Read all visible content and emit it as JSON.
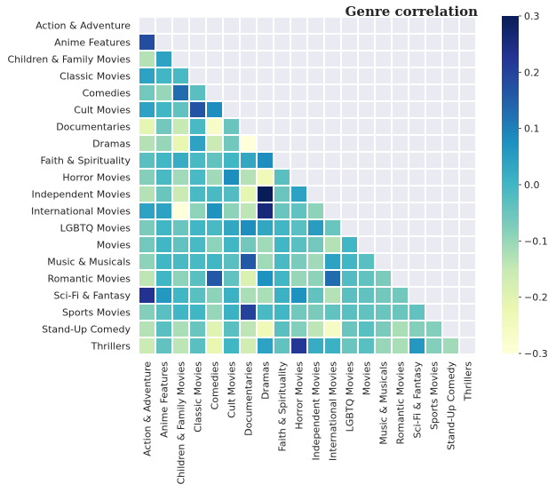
{
  "chart_data": {
    "type": "heatmap",
    "title": "Genre correlation",
    "labels": [
      "Action & Adventure",
      "Anime Features",
      "Children & Family Movies",
      "Classic Movies",
      "Comedies",
      "Cult Movies",
      "Documentaries",
      "Dramas",
      "Faith & Spirituality",
      "Horror Movies",
      "Independent Movies",
      "International Movies",
      "LGBTQ Movies",
      "Movies",
      "Music & Musicals",
      "Romantic Movies",
      "Sci-Fi & Fantasy",
      "Sports Movies",
      "Stand-Up Comedy",
      "Thrillers"
    ],
    "mask": "upper triangle including diagonal",
    "colormap": "YlGnBu",
    "vmin": -0.3,
    "vmax": 0.3,
    "colorbar_ticks": [
      "0.3",
      "0.2",
      "0.1",
      "0.0",
      "−0.1",
      "−0.2",
      "−0.3"
    ],
    "lower_triangle": [
      [],
      [
        0.18
      ],
      [
        -0.13,
        0.04
      ],
      [
        0.04,
        0.0,
        -0.01
      ],
      [
        -0.06,
        -0.1,
        0.13,
        -0.03
      ],
      [
        0.04,
        0.0,
        -0.04,
        0.17,
        0.08
      ],
      [
        -0.21,
        -0.06,
        -0.15,
        -0.01,
        -0.27,
        -0.05
      ],
      [
        -0.13,
        -0.1,
        -0.22,
        0.04,
        -0.16,
        -0.06,
        -0.3
      ],
      [
        -0.03,
        0.0,
        0.02,
        -0.01,
        -0.04,
        0.0,
        0.03,
        0.08
      ],
      [
        -0.08,
        -0.01,
        -0.11,
        -0.01,
        -0.11,
        0.08,
        -0.13,
        -0.24,
        -0.03
      ],
      [
        -0.13,
        -0.05,
        -0.16,
        -0.01,
        -0.01,
        -0.02,
        -0.21,
        0.3,
        -0.05,
        0.04
      ],
      [
        0.04,
        0.04,
        -0.3,
        -0.09,
        0.07,
        -0.09,
        -0.14,
        0.26,
        -0.05,
        -0.04,
        -0.09
      ],
      [
        -0.07,
        0.0,
        -0.05,
        0.0,
        -0.01,
        0.03,
        0.08,
        0.03,
        0.0,
        -0.03,
        0.05,
        -0.05
      ],
      [
        -0.06,
        0.0,
        -0.04,
        -0.01,
        -0.09,
        0.0,
        -0.06,
        -0.11,
        0.0,
        -0.03,
        -0.06,
        -0.13,
        0.0
      ],
      [
        -0.09,
        0.0,
        -0.01,
        -0.01,
        0.0,
        -0.03,
        0.16,
        -0.11,
        -0.01,
        -0.07,
        -0.11,
        0.04,
        0.0,
        -0.03
      ],
      [
        -0.14,
        0.0,
        -0.09,
        -0.03,
        0.16,
        -0.04,
        -0.19,
        0.07,
        0.0,
        -0.1,
        -0.09,
        0.13,
        -0.02,
        -0.04,
        -0.07
      ],
      [
        0.23,
        0.06,
        0.0,
        -0.03,
        -0.09,
        0.01,
        -0.12,
        -0.12,
        0.01,
        0.07,
        -0.04,
        -0.13,
        -0.03,
        -0.04,
        -0.06,
        -0.06
      ],
      [
        -0.08,
        -0.03,
        0.0,
        0.0,
        -0.1,
        0.01,
        0.2,
        -0.01,
        0.0,
        -0.06,
        -0.07,
        -0.04,
        -0.03,
        -0.04,
        -0.05,
        -0.05,
        -0.04
      ],
      [
        -0.13,
        -0.03,
        -0.12,
        -0.05,
        -0.2,
        -0.03,
        -0.14,
        -0.24,
        -0.03,
        -0.08,
        -0.14,
        -0.26,
        -0.05,
        -0.03,
        -0.07,
        -0.12,
        -0.08,
        -0.08
      ],
      [
        -0.16,
        -0.04,
        -0.14,
        -0.03,
        -0.22,
        0.0,
        -0.17,
        0.04,
        -0.04,
        0.22,
        0.02,
        0.01,
        -0.05,
        -0.03,
        -0.1,
        -0.12,
        0.06,
        -0.08,
        -0.11
      ]
    ]
  }
}
